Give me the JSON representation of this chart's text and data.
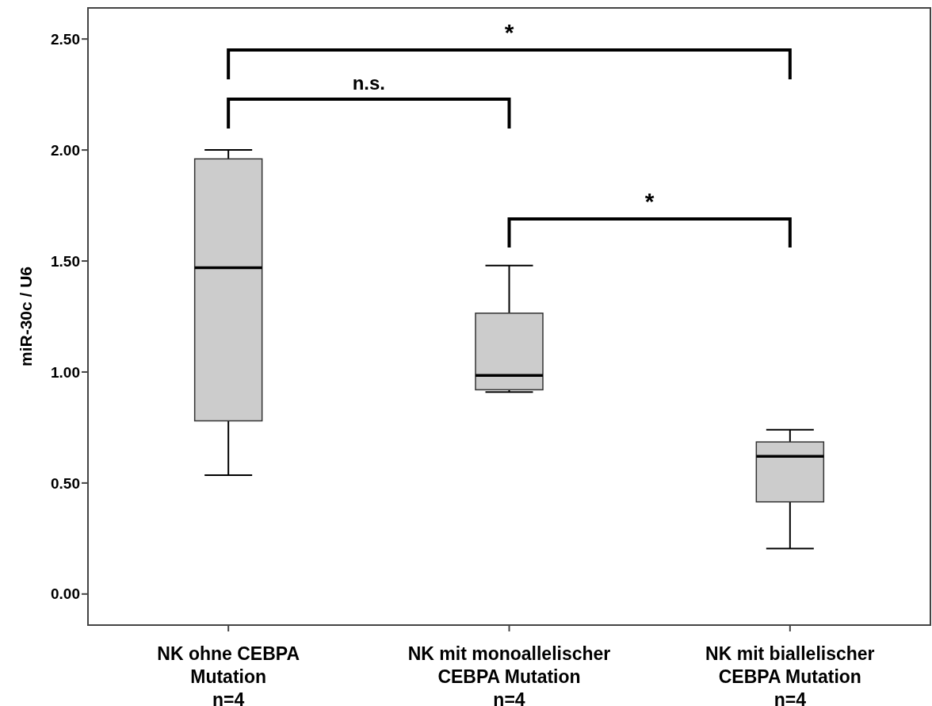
{
  "chart_data": {
    "type": "box",
    "ylabel": "miR-30c / U6",
    "categories": [
      "NK ohne CEBPA\nMutation\nn=4",
      "NK mit monoallelischer\nCEBPA Mutation\nn=4",
      "NK mit biallelischer\nCEBPA Mutation\nn=4"
    ],
    "boxes": [
      {
        "low": 0.535,
        "q1": 0.78,
        "median": 1.47,
        "q3": 1.96,
        "high": 2.0
      },
      {
        "low": 0.91,
        "q1": 0.92,
        "median": 0.985,
        "q3": 1.265,
        "high": 1.48
      },
      {
        "low": 0.205,
        "q1": 0.415,
        "median": 0.62,
        "q3": 0.685,
        "high": 0.74
      }
    ],
    "color": "#cccccc",
    "ylim": [
      -0.14,
      2.64
    ],
    "yticks": [
      {
        "value": 0,
        "label": "0.00"
      },
      {
        "value": 0.5,
        "label": "0.50"
      },
      {
        "value": 1,
        "label": "1.00"
      },
      {
        "value": 1.5,
        "label": "1.50"
      },
      {
        "value": 2,
        "label": "2.00"
      },
      {
        "value": 2.5,
        "label": "2.50"
      }
    ],
    "annotations": [
      "*",
      "n.s.",
      "*"
    ]
  }
}
